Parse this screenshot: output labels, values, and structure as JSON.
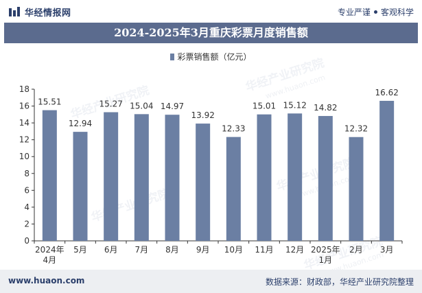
{
  "header": {
    "brand": "华经情报网",
    "tagline_left": "专业严谨",
    "tagline_right": "客观科学"
  },
  "footer": {
    "url": "www.huaon.com",
    "source": "数据来源：财政部，华经产业研究院整理"
  },
  "watermark": {
    "text": "华经产业研究院",
    "url": "www.huaon.com"
  },
  "colors": {
    "bar": "#6b7fa3",
    "title_bg": "#5b6b8e",
    "brand": "#2b3f6b"
  },
  "chart_data": {
    "type": "bar",
    "title": "2024-2025年3月重庆彩票月度销售额",
    "legend": "彩票销售额（亿元）",
    "legend_position": "top-center",
    "categories": [
      [
        "2024年",
        "4月"
      ],
      [
        "5月"
      ],
      [
        "6月"
      ],
      [
        "7月"
      ],
      [
        "8月"
      ],
      [
        "9月"
      ],
      [
        "10月"
      ],
      [
        "11月"
      ],
      [
        "12月"
      ],
      [
        "2025年",
        "1月"
      ],
      [
        "2月"
      ],
      [
        "3月"
      ]
    ],
    "series": [
      {
        "name": "彩票销售额（亿元）",
        "values": [
          15.51,
          12.94,
          15.27,
          15.04,
          14.97,
          13.92,
          12.33,
          15.01,
          15.12,
          14.82,
          12.32,
          16.62
        ]
      }
    ],
    "ylim": [
      0,
      18
    ],
    "yticks": [
      0,
      2,
      4,
      6,
      8,
      10,
      12,
      14,
      16,
      18
    ],
    "grid": false
  }
}
